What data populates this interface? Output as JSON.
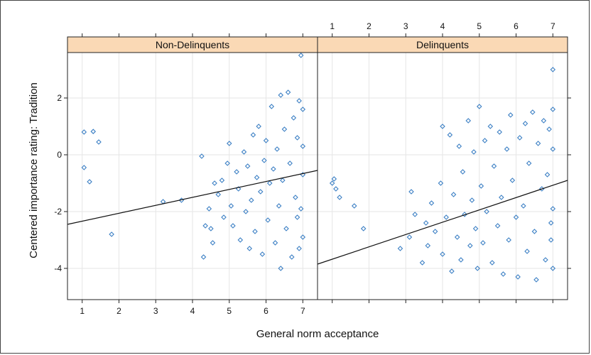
{
  "chart_data": {
    "type": "scatter",
    "xlabel": "General norm acceptance",
    "ylabel": "Centered importance rating: Tradition",
    "xlim": [
      0.6,
      7.4
    ],
    "ylim": [
      -5.1,
      3.6
    ],
    "x_ticks": [
      1,
      2,
      3,
      4,
      5,
      6,
      7
    ],
    "y_ticks": [
      -4,
      -2,
      0,
      2
    ],
    "grid": true,
    "colors": {
      "points": "#3b7fc4",
      "strip": "#fad9b5",
      "line": "#111111",
      "grid": "#e6e6e6"
    },
    "panels": [
      {
        "name": "Non-Delinquents",
        "fit_line": {
          "x": [
            0.6,
            7.4
          ],
          "y": [
            -2.45,
            -0.55
          ]
        },
        "points": [
          [
            1.05,
            0.8
          ],
          [
            1.3,
            0.82
          ],
          [
            1.45,
            0.45
          ],
          [
            1.05,
            -0.45
          ],
          [
            1.2,
            -0.95
          ],
          [
            1.8,
            -2.8
          ],
          [
            3.2,
            -1.65
          ],
          [
            3.7,
            -1.6
          ],
          [
            4.25,
            -0.05
          ],
          [
            4.3,
            -3.6
          ],
          [
            4.35,
            -2.5
          ],
          [
            4.45,
            -1.9
          ],
          [
            4.5,
            -2.6
          ],
          [
            4.55,
            -3.1
          ],
          [
            4.6,
            -1.0
          ],
          [
            4.7,
            -1.4
          ],
          [
            4.8,
            -0.9
          ],
          [
            4.85,
            -2.2
          ],
          [
            4.95,
            -0.3
          ],
          [
            5.0,
            0.4
          ],
          [
            5.05,
            -1.8
          ],
          [
            5.1,
            -2.5
          ],
          [
            5.2,
            -0.6
          ],
          [
            5.25,
            -1.2
          ],
          [
            5.3,
            -3.0
          ],
          [
            5.4,
            0.1
          ],
          [
            5.45,
            -2.0
          ],
          [
            5.5,
            -0.4
          ],
          [
            5.55,
            -3.3
          ],
          [
            5.6,
            -1.6
          ],
          [
            5.65,
            0.7
          ],
          [
            5.7,
            -2.7
          ],
          [
            5.75,
            -0.8
          ],
          [
            5.8,
            1.0
          ],
          [
            5.85,
            -1.3
          ],
          [
            5.9,
            -3.5
          ],
          [
            5.95,
            -0.2
          ],
          [
            6.0,
            0.5
          ],
          [
            6.05,
            -2.3
          ],
          [
            6.1,
            -1.0
          ],
          [
            6.15,
            1.7
          ],
          [
            6.2,
            -0.5
          ],
          [
            6.25,
            -3.1
          ],
          [
            6.3,
            0.2
          ],
          [
            6.35,
            -1.8
          ],
          [
            6.4,
            2.1
          ],
          [
            6.4,
            -4.0
          ],
          [
            6.45,
            -0.9
          ],
          [
            6.5,
            0.9
          ],
          [
            6.55,
            -2.6
          ],
          [
            6.6,
            2.2
          ],
          [
            6.65,
            -0.3
          ],
          [
            6.7,
            -3.6
          ],
          [
            6.75,
            1.3
          ],
          [
            6.8,
            -1.5
          ],
          [
            6.85,
            0.6
          ],
          [
            6.9,
            1.9
          ],
          [
            6.9,
            -3.3
          ],
          [
            6.95,
            3.5
          ],
          [
            7.0,
            1.6
          ],
          [
            7.0,
            -2.9
          ],
          [
            7.0,
            0.3
          ],
          [
            7.0,
            -0.7
          ],
          [
            6.95,
            -1.9
          ],
          [
            6.85,
            -2.2
          ]
        ]
      },
      {
        "name": "Delinquents",
        "fit_line": {
          "x": [
            0.6,
            7.4
          ],
          "y": [
            -3.85,
            -0.9
          ]
        },
        "points": [
          [
            1.0,
            -1.0
          ],
          [
            1.05,
            -0.85
          ],
          [
            1.1,
            -1.2
          ],
          [
            1.2,
            -1.5
          ],
          [
            1.6,
            -1.8
          ],
          [
            1.85,
            -2.6
          ],
          [
            2.85,
            -3.3
          ],
          [
            3.1,
            -2.9
          ],
          [
            3.15,
            -1.3
          ],
          [
            3.25,
            -2.1
          ],
          [
            3.45,
            -3.8
          ],
          [
            3.55,
            -2.4
          ],
          [
            3.6,
            -3.2
          ],
          [
            3.7,
            -1.7
          ],
          [
            3.8,
            -2.7
          ],
          [
            3.95,
            -1.0
          ],
          [
            4.0,
            1.0
          ],
          [
            4.0,
            -3.5
          ],
          [
            4.1,
            -2.2
          ],
          [
            4.2,
            0.7
          ],
          [
            4.25,
            -4.1
          ],
          [
            4.3,
            -1.4
          ],
          [
            4.4,
            -2.9
          ],
          [
            4.45,
            0.3
          ],
          [
            4.5,
            -3.7
          ],
          [
            4.55,
            -0.6
          ],
          [
            4.6,
            -2.1
          ],
          [
            4.7,
            1.2
          ],
          [
            4.75,
            -3.2
          ],
          [
            4.8,
            -1.6
          ],
          [
            4.85,
            0.1
          ],
          [
            4.9,
            -2.6
          ],
          [
            4.95,
            -4.0
          ],
          [
            5.0,
            1.7
          ],
          [
            5.05,
            -1.1
          ],
          [
            5.1,
            -3.1
          ],
          [
            5.15,
            0.5
          ],
          [
            5.2,
            -2.0
          ],
          [
            5.3,
            1.0
          ],
          [
            5.35,
            -3.8
          ],
          [
            5.4,
            -0.4
          ],
          [
            5.5,
            -2.5
          ],
          [
            5.55,
            0.8
          ],
          [
            5.6,
            -1.5
          ],
          [
            5.65,
            -4.2
          ],
          [
            5.75,
            0.2
          ],
          [
            5.8,
            -3.0
          ],
          [
            5.85,
            1.4
          ],
          [
            5.9,
            -0.9
          ],
          [
            6.0,
            -2.2
          ],
          [
            6.05,
            -4.3
          ],
          [
            6.1,
            0.6
          ],
          [
            6.2,
            -1.8
          ],
          [
            6.25,
            1.1
          ],
          [
            6.3,
            -3.4
          ],
          [
            6.35,
            -0.3
          ],
          [
            6.45,
            1.5
          ],
          [
            6.5,
            -2.7
          ],
          [
            6.55,
            -4.4
          ],
          [
            6.6,
            0.4
          ],
          [
            6.7,
            -1.2
          ],
          [
            6.75,
            1.2
          ],
          [
            6.8,
            -3.7
          ],
          [
            6.85,
            -0.7
          ],
          [
            6.9,
            0.9
          ],
          [
            6.95,
            -2.4
          ],
          [
            7.0,
            3.0
          ],
          [
            7.0,
            1.6
          ],
          [
            7.0,
            -4.0
          ],
          [
            7.0,
            -1.9
          ],
          [
            7.0,
            0.2
          ],
          [
            6.95,
            -3.0
          ]
        ]
      }
    ]
  }
}
